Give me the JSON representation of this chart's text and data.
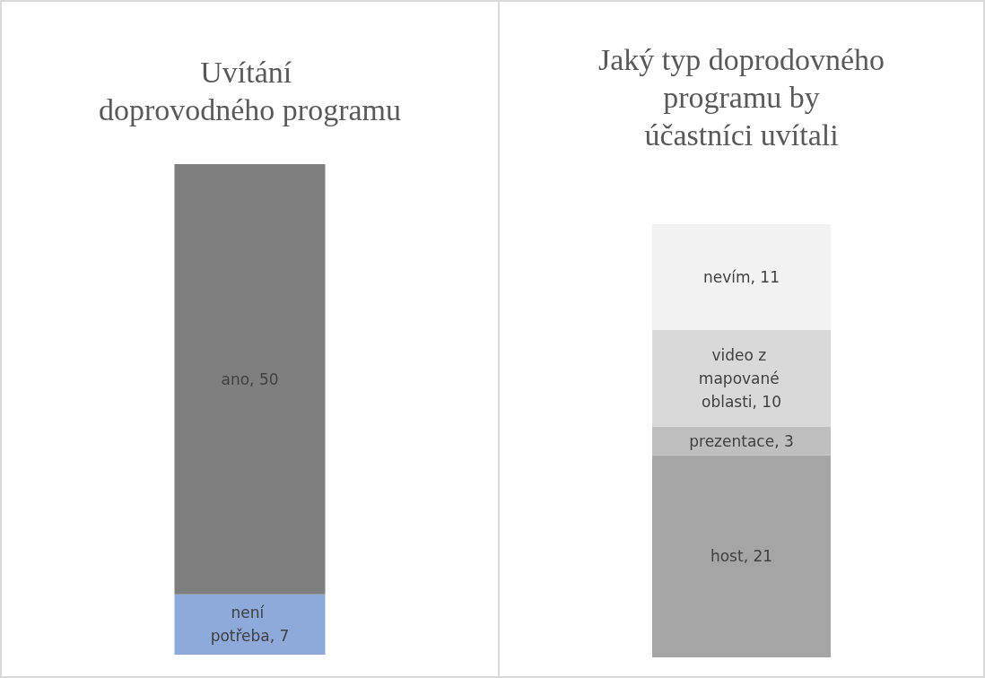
{
  "chart_data": [
    {
      "type": "bar",
      "title": "Uvítání doprovodného programu",
      "categories": [
        null
      ],
      "stacked": true,
      "series": [
        {
          "color": "#8eaadb",
          "values": [
            7
          ],
          "value_labels": [
            "není potřeba, 7"
          ]
        },
        {
          "color": "#7f7f7f",
          "values": [
            50
          ],
          "value_labels": [
            "ano, 50"
          ]
        }
      ]
    },
    {
      "type": "bar",
      "title": "Jaký typ doprodovného programu by účastníci uvítali",
      "categories": [
        null
      ],
      "stacked": true,
      "series": [
        {
          "color": "#a5a5a5",
          "values": [
            21
          ],
          "value_labels": [
            "host, 21"
          ]
        },
        {
          "color": "#bfbfbf",
          "values": [
            3
          ],
          "value_labels": [
            "prezentace, 3"
          ]
        },
        {
          "color": "#d9d9d9",
          "values": [
            10
          ],
          "value_labels": [
            "video z mapované oblasti, 10"
          ]
        },
        {
          "color": "#f2f2f2",
          "values": [
            11
          ],
          "value_labels": [
            "nevím, 11"
          ]
        }
      ]
    }
  ]
}
